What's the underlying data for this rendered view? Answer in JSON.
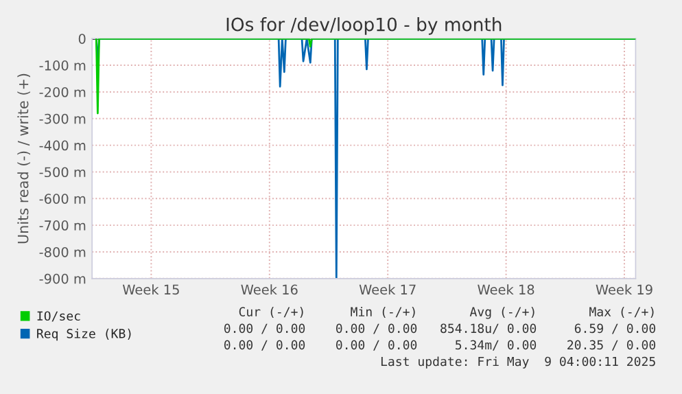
{
  "chart_data": {
    "type": "line",
    "title": "IOs for /dev/loop10 - by month",
    "ylabel": "Units read (-) / write (+)",
    "series": [
      {
        "name": "IO/sec",
        "color": "#00cc00",
        "x": [
          "2025-04-07T06:00",
          "2025-04-07T08:00",
          "2025-04-07T10:00",
          "2025-04-19T20:00",
          "2025-04-19T22:00",
          "2025-04-20T00:00",
          "2025-05-09T04:00"
        ],
        "values": [
          0,
          -280,
          0,
          0,
          -30,
          0,
          0
        ]
      },
      {
        "name": "Req Size (KB)",
        "color": "#0066b3",
        "x": [
          "2025-04-07T06:00",
          "2025-04-07T08:00",
          "2025-04-07T10:00",
          "2025-04-18T01:00",
          "2025-04-18T03:00",
          "2025-04-18T06:00",
          "2025-04-18T09:00",
          "2025-04-18T11:00",
          "2025-04-19T10:00",
          "2025-04-19T12:00",
          "2025-04-19T17:00",
          "2025-04-19T22:00",
          "2025-04-20T00:00",
          "2025-04-21T09:00",
          "2025-04-21T11:00",
          "2025-04-21T13:00",
          "2025-04-23T04:00",
          "2025-04-23T06:00",
          "2025-04-23T08:00",
          "2025-04-30T02:00",
          "2025-04-30T04:00",
          "2025-04-30T06:00",
          "2025-04-30T15:00",
          "2025-04-30T17:00",
          "2025-04-30T19:00",
          "2025-05-01T05:00",
          "2025-05-01T07:00",
          "2025-05-01T09:00",
          "2025-05-09T04:00"
        ],
        "values": [
          0,
          -100,
          0,
          0,
          -180,
          0,
          -125,
          0,
          0,
          -85,
          0,
          -90,
          0,
          0,
          -900,
          0,
          0,
          -115,
          0,
          0,
          -135,
          0,
          0,
          -120,
          0,
          0,
          -175,
          0,
          0
        ]
      }
    ],
    "xlim": [
      "2025-04-07T00:00",
      "2025-05-09T04:00"
    ],
    "xticks": [
      {
        "value": "2025-04-10T12:00",
        "label": "Week 15"
      },
      {
        "value": "2025-04-17T12:00",
        "label": "Week 16"
      },
      {
        "value": "2025-04-24T12:00",
        "label": "Week 17"
      },
      {
        "value": "2025-05-01T12:00",
        "label": "Week 18"
      },
      {
        "value": "2025-05-08T12:00",
        "label": "Week 19"
      }
    ],
    "ylim": [
      -900,
      0
    ],
    "yticks": [
      0,
      {
        "value": -100,
        "label": "-100 m"
      },
      {
        "value": -200,
        "label": "-200 m"
      },
      {
        "value": -300,
        "label": "-300 m"
      },
      {
        "value": -400,
        "label": "-400 m"
      },
      {
        "value": -500,
        "label": "-500 m"
      },
      {
        "value": -600,
        "label": "-600 m"
      },
      {
        "value": -700,
        "label": "-700 m"
      },
      {
        "value": -800,
        "label": "-800 m"
      },
      {
        "value": -900,
        "label": "-900 m"
      }
    ],
    "grid": true,
    "legend": "bottom left",
    "annotations": [
      "Cur (-/+)      Min (-/+)       Avg (-/+)       Max (-/+)",
      "0.00 / 0.00    0.00 / 0.00   854.18u/ 0.00     6.59 / 0.00",
      "0.00 / 0.00    0.00 / 0.00     5.34m/ 0.00    20.35 / 0.00",
      "Last update: Fri May  9 04:00:11 2025"
    ]
  }
}
